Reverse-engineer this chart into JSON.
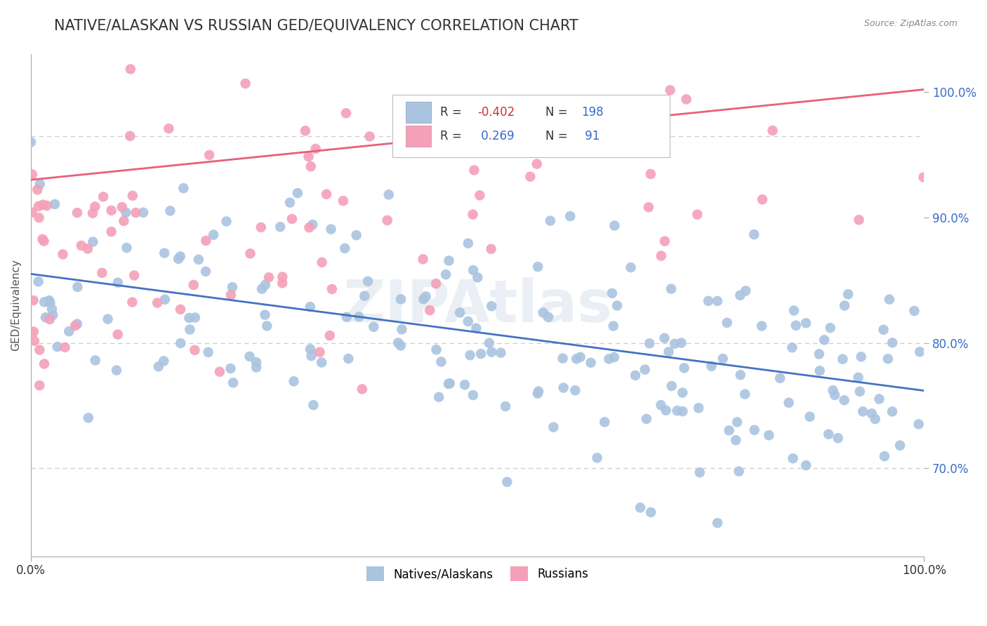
{
  "title": "NATIVE/ALASKAN VS RUSSIAN GED/EQUIVALENCY CORRELATION CHART",
  "source_text": "Source: ZipAtlas.com",
  "ylabel": "GED/Equivalency",
  "watermark": "ZIPAtlas",
  "xlim": [
    0.0,
    1.0
  ],
  "ylim": [
    0.63,
    1.03
  ],
  "yticks": [
    0.7,
    0.8,
    0.9,
    1.0
  ],
  "ytick_labels": [
    "70.0%",
    "80.0%",
    "90.0%",
    "100.0%"
  ],
  "blue_R": -0.402,
  "blue_N": 198,
  "pink_R": 0.269,
  "pink_N": 91,
  "blue_color": "#aac4e0",
  "pink_color": "#f4a0b8",
  "blue_line_color": "#4472c4",
  "pink_line_color": "#e8607a",
  "legend_label_blue": "Natives/Alaskans",
  "legend_label_pink": "Russians",
  "title_fontsize": 15,
  "axis_label_fontsize": 11,
  "blue_trend_start_y": 0.855,
  "blue_trend_end_y": 0.762,
  "pink_trend_start_y": 0.93,
  "pink_trend_end_y": 1.002,
  "dashed_line_y1": 0.965,
  "dashed_line_y2": 0.8,
  "dashed_line_y3": 0.7,
  "background_color": "#ffffff"
}
